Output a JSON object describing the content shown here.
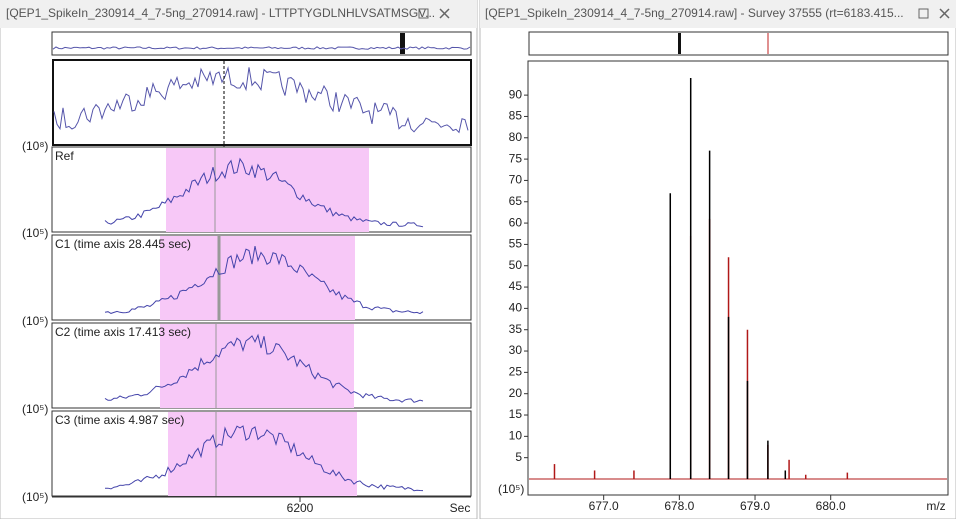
{
  "left_window": {
    "title": "[QEP1_SpikeIn_230914_4_7-5ng_270914.raw] - LTTPTYGDLNHLVSATMSGV...",
    "tic_exponent": "(10⁸)",
    "panels": [
      {
        "label": "Ref",
        "exponent": "(10⁵)"
      },
      {
        "label": "C1 (time axis 28.445 sec)",
        "exponent": "(10⁵)"
      },
      {
        "label": "C2 (time axis 17.413 sec)",
        "exponent": "(10⁵)"
      },
      {
        "label": "C3 (time axis 4.987 sec)",
        "exponent": "(10⁵)"
      }
    ],
    "x_tick": "6200",
    "x_unit": "Sec"
  },
  "right_window": {
    "title": "[QEP1_SpikeIn_230914_4_7-5ng_270914.raw] - Survey 37555 (rt=6183.415...",
    "spectrum": {
      "type": "stick",
      "y_exponent": "(10⁵)",
      "x_label": "m/z",
      "xlim": [
        676.0,
        681.55
      ],
      "ylim": [
        0,
        98
      ],
      "yticks": [
        5,
        10,
        15,
        20,
        25,
        30,
        35,
        40,
        45,
        50,
        55,
        60,
        65,
        70,
        75,
        80,
        85,
        90
      ],
      "xticks": [
        {
          "value": 677,
          "label": "677.0"
        },
        {
          "value": 678,
          "label": "678.0"
        },
        {
          "value": 679,
          "label": "679.0"
        },
        {
          "value": 680,
          "label": "680.0"
        }
      ],
      "series": [
        {
          "color": "#b01818",
          "x": [
            676.35,
            676.88,
            677.4,
            677.88,
            678.15,
            678.4,
            678.65,
            678.9,
            679.17,
            679.45,
            679.67,
            680.22
          ],
          "values": [
            3.5,
            2,
            2,
            50,
            57,
            61,
            52,
            35,
            8,
            4.5,
            1,
            1.5
          ]
        },
        {
          "color": "#000000",
          "x": [
            677.88,
            678.15,
            678.4,
            678.65,
            678.9,
            679.17,
            679.4
          ],
          "values": [
            67,
            94,
            77,
            38,
            23,
            9,
            2
          ]
        }
      ]
    }
  }
}
